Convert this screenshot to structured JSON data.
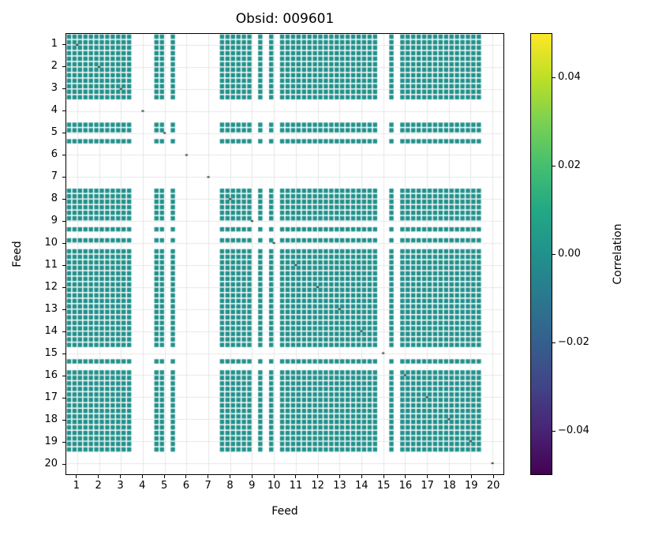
{
  "figure": {
    "title": "Obsid: 009601"
  },
  "chart_data": {
    "type": "heatmap",
    "title": "Obsid: 009601",
    "xlabel": "Feed",
    "ylabel": "Feed",
    "x_tick_labels": [
      "1",
      "2",
      "3",
      "4",
      "5",
      "6",
      "7",
      "8",
      "9",
      "10",
      "11",
      "12",
      "13",
      "14",
      "15",
      "16",
      "17",
      "18",
      "19",
      "20"
    ],
    "y_tick_labels": [
      "1",
      "2",
      "3",
      "4",
      "5",
      "6",
      "7",
      "8",
      "9",
      "10",
      "11",
      "12",
      "13",
      "14",
      "15",
      "16",
      "17",
      "18",
      "19",
      "20"
    ],
    "n_feeds": 20,
    "bands_per_feed": 4,
    "matrix_size": 80,
    "cell_value": 0.0,
    "matrix_rule": "Correlation cell (r,c) is drawn (uniform teal, value ~0.00) only when band r and band c are both valid; masked bands leave white rows/columns",
    "masked_feeds": [
      4,
      6,
      7,
      20
    ],
    "invalid_bands": [
      12,
      13,
      14,
      15,
      18,
      20,
      21,
      22,
      23,
      24,
      25,
      26,
      27,
      34,
      36,
      38,
      57,
      58,
      60,
      76,
      77,
      78,
      79
    ],
    "diagonal_annotations": "tiny dark value marks along the block diagonal for every feed, including masked feeds",
    "colormap": "viridis",
    "grid": true,
    "colorbar": {
      "label": "Correlation",
      "vmin": -0.05,
      "vmax": 0.05,
      "tick_values": [
        0.04,
        0.02,
        0.0,
        -0.02,
        -0.04
      ],
      "tick_labels": [
        "0.04",
        "0.02",
        "0.00",
        "−0.02",
        "−0.04"
      ]
    }
  },
  "colors": {
    "cell": "#21918c",
    "grid": "#e7e7e7",
    "diag_mark": "#3a3a3a",
    "spine": "#000000",
    "background": "#ffffff",
    "viridis_stops": [
      [
        0.0,
        "#440154"
      ],
      [
        0.1,
        "#482475"
      ],
      [
        0.2,
        "#414487"
      ],
      [
        0.3,
        "#355f8d"
      ],
      [
        0.4,
        "#2a788e"
      ],
      [
        0.5,
        "#21918c"
      ],
      [
        0.6,
        "#22a884"
      ],
      [
        0.7,
        "#44bf70"
      ],
      [
        0.8,
        "#7ad151"
      ],
      [
        0.9,
        "#bddf26"
      ],
      [
        1.0,
        "#fde725"
      ]
    ]
  }
}
